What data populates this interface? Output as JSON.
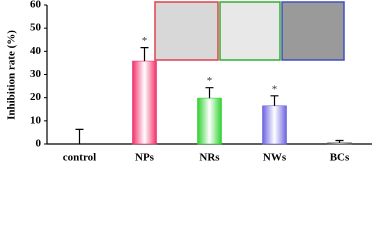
{
  "chart_data": {
    "type": "bar",
    "ylabel": "Inhibition rate (%)",
    "categories": [
      "control",
      "NPs",
      "NRs",
      "NWs",
      "BCs"
    ],
    "values": [
      0,
      35.8,
      19.8,
      16.5,
      0.5
    ],
    "errors": [
      6.3,
      5.8,
      4.5,
      4.3,
      1
    ],
    "markers": [
      null,
      "*",
      "*",
      "*",
      null
    ],
    "colors": [
      "#777777",
      "#f0306a",
      "#2fd12f",
      "#6b63e0",
      "#555555"
    ],
    "ylim": [
      0,
      60
    ],
    "yticks": [
      0,
      10,
      20,
      30,
      40,
      50,
      60
    ]
  }
}
